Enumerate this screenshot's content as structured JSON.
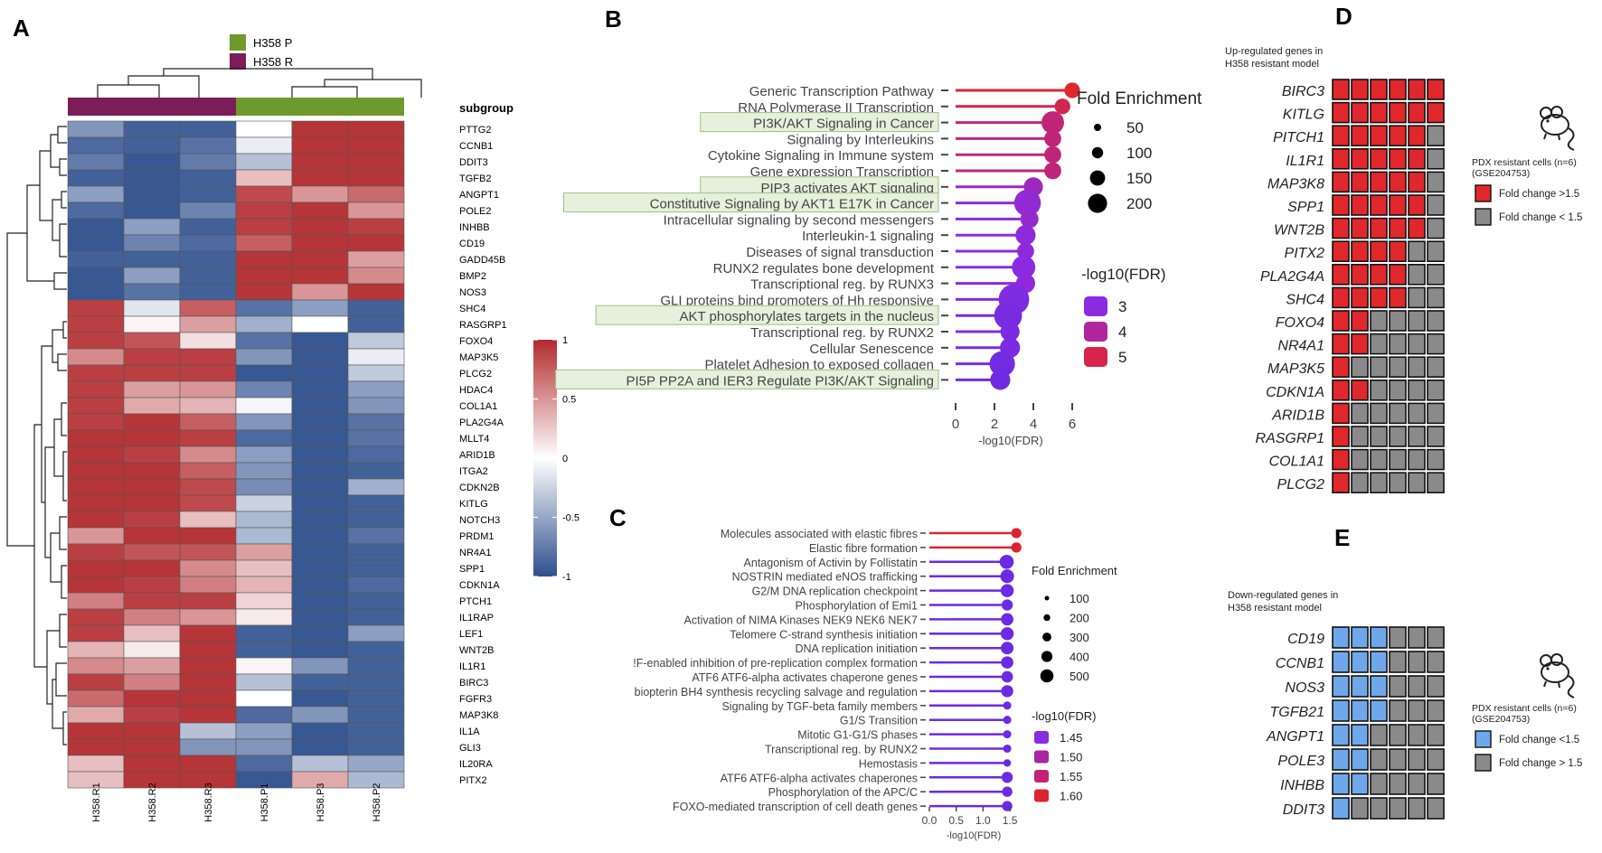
{
  "panels": {
    "a": "A",
    "b": "B",
    "c": "C",
    "d": "D",
    "e": "E"
  },
  "colors": {
    "h358p": "#6e9a2b",
    "h358r": "#7b1d58",
    "heat_low": "#2e4f8e",
    "heat_mid": "#ffffff",
    "heat_high": "#b22a2e",
    "grid_red": "#e0282c",
    "grid_gray": "#8a8a8a",
    "grid_blue": "#6fa8ea",
    "highlight_fill": "#e6f0dc",
    "highlight_stroke": "#9fbf87"
  },
  "chart_data": [
    {
      "id": "A",
      "type": "heatmap",
      "legend": [
        {
          "name": "H358 P",
          "color_key": "h358p"
        },
        {
          "name": "H358 R",
          "color_key": "h358r"
        }
      ],
      "annotation_label": "subgroup",
      "columns": [
        "H358.R1",
        "H358.R2",
        "H358.R3",
        "H358.P1",
        "H358.P3",
        "H358.P2"
      ],
      "column_groups": [
        "R",
        "R",
        "R",
        "P",
        "P",
        "P"
      ],
      "rows": [
        "PTTG2",
        "CCNB1",
        "DDIT3",
        "TGFB2",
        "ANGPT1",
        "POLE2",
        "INHBB",
        "CD19",
        "GADD45B",
        "BMP2",
        "NOS3",
        "SHC4",
        "RASGRP1",
        "FOXO4",
        "MAP3K5",
        "PLCG2",
        "HDAC4",
        "COL1A1",
        "PLA2G4A",
        "MLLT4",
        "ARID1B",
        "ITGA2",
        "CDKN2B",
        "KITLG",
        "NOTCH3",
        "PRDM1",
        "NR4A1",
        "SPP1",
        "CDKN1A",
        "PTCH1",
        "IL1RAP",
        "LEF1",
        "WNT2B",
        "IL1R1",
        "BIRC3",
        "FGFR3",
        "MAP3K8",
        "IL1A",
        "GLI3",
        "IL20RA",
        "PITX2"
      ],
      "values": [
        [
          -0.6,
          -0.9,
          -0.9,
          0.0,
          0.95,
          0.95
        ],
        [
          -0.85,
          -0.9,
          -0.8,
          -0.1,
          0.95,
          0.95
        ],
        [
          -0.75,
          -0.95,
          -0.75,
          -0.35,
          0.95,
          0.95
        ],
        [
          -0.9,
          -0.95,
          -0.9,
          0.3,
          0.95,
          0.95
        ],
        [
          -0.55,
          -0.95,
          -0.9,
          0.85,
          0.5,
          0.7
        ],
        [
          -0.85,
          -0.95,
          -0.7,
          0.9,
          0.95,
          0.5
        ],
        [
          -0.95,
          -0.55,
          -0.9,
          0.9,
          0.95,
          0.9
        ],
        [
          -0.95,
          -0.7,
          -0.85,
          0.75,
          0.95,
          0.95
        ],
        [
          -0.9,
          -0.9,
          -0.9,
          0.95,
          0.95,
          0.45
        ],
        [
          -0.95,
          -0.55,
          -0.9,
          0.95,
          0.95,
          0.55
        ],
        [
          -0.95,
          -0.8,
          -0.9,
          0.95,
          0.5,
          0.95
        ],
        [
          0.9,
          -0.15,
          0.75,
          -0.8,
          -0.55,
          -0.9
        ],
        [
          0.9,
          0.05,
          0.45,
          -0.45,
          0.0,
          -0.9
        ],
        [
          0.9,
          0.8,
          0.15,
          -0.8,
          -0.95,
          -0.3
        ],
        [
          0.55,
          0.9,
          0.9,
          -0.6,
          -0.95,
          -0.1
        ],
        [
          0.9,
          0.9,
          0.9,
          -0.95,
          -0.95,
          -0.3
        ],
        [
          0.9,
          0.45,
          0.5,
          -0.7,
          -0.95,
          -0.55
        ],
        [
          0.9,
          0.4,
          0.35,
          -0.05,
          -0.95,
          -0.6
        ],
        [
          0.9,
          0.95,
          0.75,
          -0.6,
          -0.95,
          -0.8
        ],
        [
          0.95,
          0.95,
          0.9,
          -0.85,
          -0.95,
          -0.8
        ],
        [
          0.95,
          0.9,
          0.55,
          -0.55,
          -0.95,
          -0.85
        ],
        [
          0.95,
          0.95,
          0.75,
          -0.6,
          -0.95,
          -0.9
        ],
        [
          0.95,
          0.95,
          0.85,
          -0.65,
          -0.95,
          -0.45
        ],
        [
          0.95,
          0.95,
          0.85,
          -0.25,
          -0.95,
          -0.9
        ],
        [
          0.95,
          0.9,
          0.3,
          -0.4,
          -0.95,
          -0.9
        ],
        [
          0.5,
          0.95,
          0.95,
          -0.4,
          -0.95,
          -0.8
        ],
        [
          0.9,
          0.8,
          0.8,
          0.45,
          -0.95,
          -0.9
        ],
        [
          0.95,
          0.95,
          0.55,
          0.3,
          -0.95,
          -0.9
        ],
        [
          0.95,
          0.9,
          0.6,
          0.35,
          -0.95,
          -0.85
        ],
        [
          0.6,
          0.9,
          0.9,
          0.2,
          -0.95,
          -0.9
        ],
        [
          0.9,
          0.6,
          0.5,
          0.1,
          -0.95,
          -0.9
        ],
        [
          0.9,
          0.3,
          0.95,
          -0.9,
          -0.95,
          -0.55
        ],
        [
          0.35,
          0.1,
          0.95,
          -0.9,
          -0.95,
          -0.9
        ],
        [
          0.55,
          0.45,
          0.95,
          0.05,
          -0.6,
          -0.9
        ],
        [
          0.9,
          0.6,
          0.95,
          -0.35,
          -0.9,
          -0.9
        ],
        [
          0.7,
          0.95,
          0.95,
          0.0,
          -0.95,
          -0.9
        ],
        [
          0.4,
          0.9,
          0.95,
          -0.85,
          -0.6,
          -0.9
        ],
        [
          0.95,
          0.95,
          -0.35,
          -0.55,
          -0.95,
          -0.9
        ],
        [
          0.95,
          0.95,
          -0.6,
          -0.6,
          -0.95,
          -0.9
        ],
        [
          0.3,
          0.95,
          0.95,
          -0.85,
          -0.35,
          -0.5
        ],
        [
          0.3,
          0.95,
          0.95,
          -0.95,
          0.4,
          -0.4
        ]
      ],
      "scale": {
        "min": -1,
        "max": 1,
        "ticks": [
          "1",
          "0.5",
          "0",
          "-0.5",
          "-1"
        ],
        "tick_values": [
          1,
          0.5,
          0,
          -0.5,
          -1
        ]
      }
    },
    {
      "id": "B",
      "type": "lollipop",
      "xlabel": "-log10(FDR)",
      "xlim": [
        0,
        6
      ],
      "xticks": [
        "0",
        "2",
        "4",
        "6"
      ],
      "xtick_values": [
        0,
        2,
        4,
        6
      ],
      "size_legend_title": "Fold Enrichment",
      "size_legend": [
        {
          "label": "50",
          "value": 50
        },
        {
          "label": "100",
          "value": 100
        },
        {
          "label": "150",
          "value": 150
        },
        {
          "label": "200",
          "value": 200
        }
      ],
      "color_legend_title": "-log10(FDR)",
      "color_legend": [
        {
          "label": "3",
          "color": "#8a2be2"
        },
        {
          "label": "4",
          "color": "#b0259e"
        },
        {
          "label": "5",
          "color": "#d8234a"
        }
      ],
      "categories": [
        "Generic Transcription Pathway",
        "RNA Polymerase II Transcription",
        "PI3K/AKT Signaling in Cancer",
        "Signaling by Interleukins",
        "Cytokine Signaling in Immune system",
        "Gene expression Transcription",
        "PIP3 activates AKT signaling",
        "Constitutive Signaling by AKT1 E17K in Cancer",
        "Intracellular signaling by second messengers",
        "Interleukin-1 signaling",
        "Diseases of signal transduction",
        "RUNX2 regulates bone development",
        "Transcriptional reg. by RUNX3",
        "GLI proteins bind promoters of Hh responsive",
        "AKT phosphorylates targets in the nucleus",
        "Transcriptional reg. by RUNX2",
        "Cellular Senescence",
        "Platelet Adhesion to exposed collagen",
        "PI5P PP2A and IER3 Regulate PI3K/AKT Signaling"
      ],
      "values": [
        6.0,
        5.5,
        5.0,
        5.0,
        5.0,
        5.0,
        4.0,
        3.7,
        3.8,
        3.6,
        3.6,
        3.5,
        3.6,
        3.0,
        2.7,
        2.8,
        2.8,
        2.4,
        2.3
      ],
      "fold_enrichment": [
        30,
        30,
        100,
        40,
        40,
        40,
        60,
        160,
        50,
        70,
        40,
        110,
        60,
        230,
        180,
        60,
        70,
        140,
        70
      ],
      "highlighted": [
        false,
        false,
        true,
        false,
        false,
        false,
        true,
        true,
        false,
        false,
        false,
        false,
        false,
        false,
        true,
        false,
        false,
        false,
        true
      ]
    },
    {
      "id": "C",
      "type": "lollipop",
      "xlabel": "-log10(FDR)",
      "xlim": [
        0,
        1.6
      ],
      "xticks": [
        "0.0",
        "0.5",
        "1.0",
        "1.5"
      ],
      "xtick_values": [
        0,
        0.5,
        1.0,
        1.5
      ],
      "size_legend_title": "Fold Enrichment",
      "size_legend": [
        {
          "label": "100",
          "value": 100
        },
        {
          "label": "200",
          "value": 200
        },
        {
          "label": "300",
          "value": 300
        },
        {
          "label": "400",
          "value": 400
        },
        {
          "label": "500",
          "value": 500
        }
      ],
      "color_legend_title": "-log10(FDR)",
      "color_legend": [
        {
          "label": "1.45",
          "color": "#8a2be2"
        },
        {
          "label": "1.50",
          "color": "#a8269e"
        },
        {
          "label": "1.55",
          "color": "#c42375"
        },
        {
          "label": "1.60",
          "color": "#dc2430"
        }
      ],
      "categories": [
        "Molecules associated with elastic fibres",
        "Elastic fibre formation",
        "Antagonism of Activin by Follistatin",
        "NOSTRIN mediated eNOS trafficking",
        "G2/M DNA replication checkpoint",
        "Phosphorylation of Emi1",
        "Activation of NIMA Kinases NEK9 NEK6 NEK7",
        "Telomere C-strand synthesis initiation",
        "DNA replication initiation",
        "!F-enabled inhibition of pre-replication complex formation",
        "ATF6 ATF6-alpha activates chaperone genes",
        "biopterin BH4 synthesis recycling salvage and regulation",
        "Signaling by TGF-beta family members",
        "G1/S Transition",
        "Mitotic G1-G1/S phases",
        "Transcriptional reg. by RUNX2",
        "Hemostasis",
        "ATF6 ATF6-alpha activates chaperones",
        "Phosphorylation of the APC/C",
        "FOXO-mediated transcription of cell death genes"
      ],
      "values": [
        1.62,
        1.62,
        1.44,
        1.45,
        1.45,
        1.45,
        1.45,
        1.45,
        1.45,
        1.45,
        1.45,
        1.45,
        1.45,
        1.45,
        1.45,
        1.45,
        1.45,
        1.45,
        1.45,
        1.45
      ],
      "fold_enrichment": [
        150,
        150,
        420,
        380,
        330,
        200,
        280,
        330,
        300,
        270,
        220,
        260,
        60,
        60,
        60,
        60,
        40,
        200,
        150,
        150
      ],
      "point_colors": [
        "#dc2430",
        "#dc2430",
        "#6a2be2",
        "#6a2be2",
        "#6a2be2",
        "#6a2be2",
        "#6a2be2",
        "#6a2be2",
        "#6a2be2",
        "#6a2be2",
        "#6a2be2",
        "#6a2be2",
        "#6a2be2",
        "#6a2be2",
        "#6a2be2",
        "#6a2be2",
        "#6a2be2",
        "#6a2be2",
        "#6a2be2",
        "#6a2be2"
      ]
    },
    {
      "id": "D",
      "type": "tile-grid",
      "title_line1": "Up-regulated genes in",
      "title_line2": "H358 resistant model",
      "genes": [
        "BIRC3",
        "KITLG",
        "PITCH1",
        "IL1R1",
        "MAP3K8",
        "SPP1",
        "WNT2B",
        "PITX2",
        "PLA2G4A",
        "SHC4",
        "FOXO4",
        "NR4A1",
        "MAP3K5",
        "CDKN1A",
        "ARID1B",
        "RASGRP1",
        "COL1A1",
        "PLCG2"
      ],
      "n_samples": 6,
      "red_counts": [
        6,
        6,
        5,
        5,
        5,
        5,
        5,
        4,
        4,
        4,
        2,
        2,
        1,
        2,
        1,
        1,
        1,
        1
      ],
      "legend_title_line1": "PDX resistant cells (n=6)",
      "legend_title_line2": "(GSE204753)",
      "legend_items": [
        {
          "label": "Fold change >1.5",
          "color_key": "grid_red"
        },
        {
          "label": "Fold change < 1.5",
          "color_key": "grid_gray"
        }
      ]
    },
    {
      "id": "E",
      "type": "tile-grid",
      "title_line1": "Down-regulated genes in",
      "title_line2": "H358 resistant model",
      "genes": [
        "CD19",
        "CCNB1",
        "NOS3",
        "TGFB21",
        "ANGPT1",
        "POLE3",
        "INHBB",
        "DDIT3"
      ],
      "n_samples": 6,
      "blue_counts": [
        3,
        3,
        3,
        3,
        2,
        2,
        2,
        1
      ],
      "legend_title_line1": "PDX resistant cells (n=6)",
      "legend_title_line2": "(GSE204753)",
      "legend_items": [
        {
          "label": "Fold change <1.5",
          "color_key": "grid_blue"
        },
        {
          "label": "Fold change > 1.5",
          "color_key": "grid_gray"
        }
      ]
    }
  ]
}
